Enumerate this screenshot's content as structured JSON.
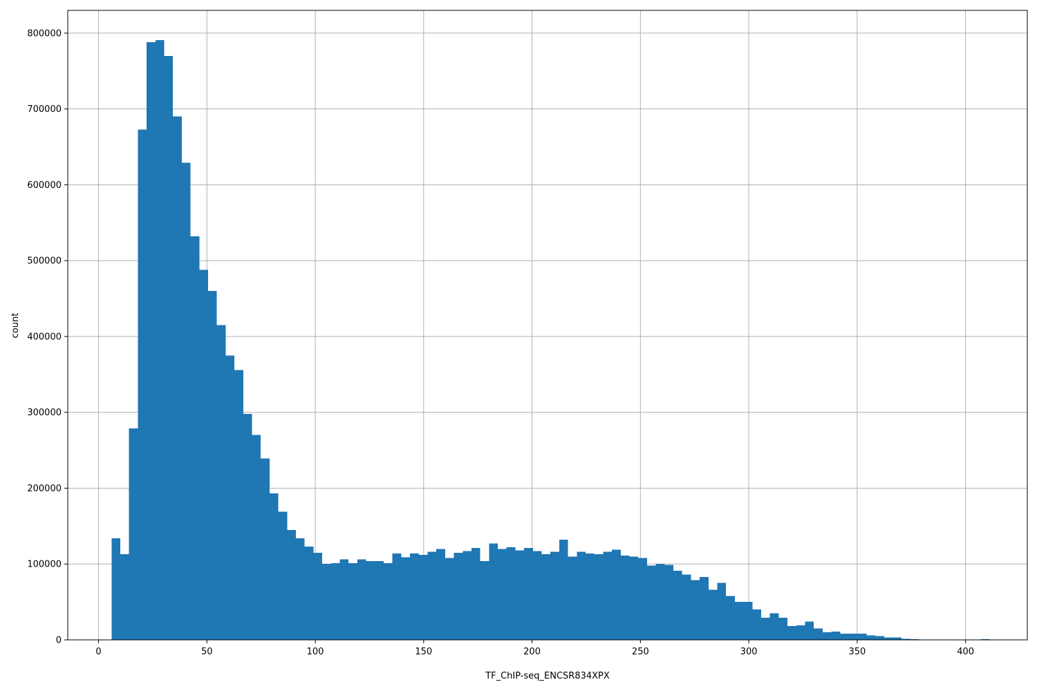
{
  "chart_data": {
    "type": "bar",
    "title": "",
    "xlabel": "TF_ChIP-seq_ENCSR834XPX",
    "ylabel": "count",
    "xlim": [
      -14.2,
      428.5
    ],
    "ylim": [
      0,
      830000
    ],
    "grid": true,
    "bar_color": "#1f77b4",
    "bin_start": 6.0,
    "bin_width": 4.05,
    "values": [
      134000,
      113000,
      279000,
      673000,
      788000,
      791000,
      770000,
      690000,
      629000,
      532000,
      488000,
      460000,
      415000,
      375000,
      356000,
      298000,
      270000,
      239000,
      193000,
      169000,
      145000,
      134000,
      123000,
      115000,
      100000,
      101000,
      106000,
      101000,
      106000,
      104000,
      104000,
      101000,
      114000,
      109000,
      114000,
      112000,
      116000,
      120000,
      108000,
      115000,
      117000,
      121000,
      104000,
      127000,
      120000,
      122000,
      118000,
      121000,
      117000,
      113000,
      116000,
      132000,
      110000,
      116000,
      114000,
      113000,
      116000,
      119000,
      111000,
      110000,
      108000,
      98000,
      100000,
      99000,
      91000,
      86000,
      79000,
      83000,
      66000,
      75000,
      58000,
      50000,
      50000,
      40000,
      29000,
      35000,
      29000,
      18000,
      19000,
      24000,
      15000,
      10000,
      11000,
      8000,
      8000,
      8000,
      6000,
      5000,
      3000,
      3000,
      1500,
      1000,
      0,
      0,
      0,
      500,
      500,
      0,
      0,
      800
    ],
    "x_ticks": [
      {
        "value": 0,
        "label": "0"
      },
      {
        "value": 50,
        "label": "50"
      },
      {
        "value": 100,
        "label": "100"
      },
      {
        "value": 150,
        "label": "150"
      },
      {
        "value": 200,
        "label": "200"
      },
      {
        "value": 250,
        "label": "250"
      },
      {
        "value": 300,
        "label": "300"
      },
      {
        "value": 350,
        "label": "350"
      },
      {
        "value": 400,
        "label": "400"
      }
    ],
    "y_ticks": [
      {
        "value": 0,
        "label": "0"
      },
      {
        "value": 100000,
        "label": "100000"
      },
      {
        "value": 200000,
        "label": "200000"
      },
      {
        "value": 300000,
        "label": "300000"
      },
      {
        "value": 400000,
        "label": "400000"
      },
      {
        "value": 500000,
        "label": "500000"
      },
      {
        "value": 600000,
        "label": "600000"
      },
      {
        "value": 700000,
        "label": "700000"
      },
      {
        "value": 800000,
        "label": "800000"
      }
    ]
  }
}
